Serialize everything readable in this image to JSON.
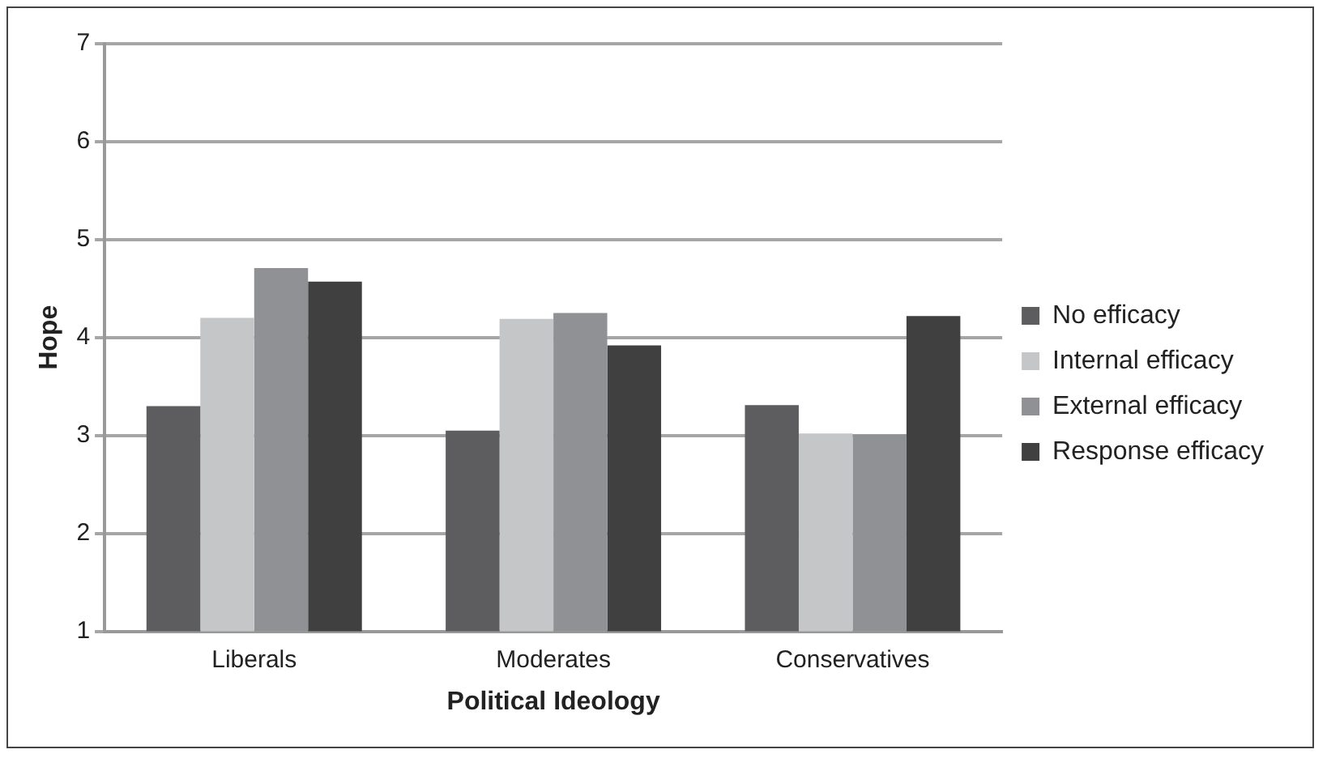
{
  "chart_data": {
    "type": "bar",
    "xlabel": "Political Ideology",
    "ylabel": "Hope",
    "categories": [
      "Liberals",
      "Moderates",
      "Conservatives"
    ],
    "series": [
      {
        "name": "No efficacy",
        "color": "#5d5d5f",
        "values": [
          3.3,
          3.05,
          3.31
        ]
      },
      {
        "name": "Internal efficacy",
        "color": "#c5c6c8",
        "values": [
          4.2,
          4.19,
          3.02
        ]
      },
      {
        "name": "External efficacy",
        "color": "#909194",
        "values": [
          4.71,
          4.25,
          3.01
        ]
      },
      {
        "name": "Response efficacy",
        "color": "#404040",
        "values": [
          4.57,
          3.92,
          4.22
        ]
      }
    ],
    "ylim": [
      1,
      7
    ],
    "yticks": [
      1,
      2,
      3,
      4,
      5,
      6,
      7
    ],
    "grid": "y",
    "legend": "right"
  }
}
